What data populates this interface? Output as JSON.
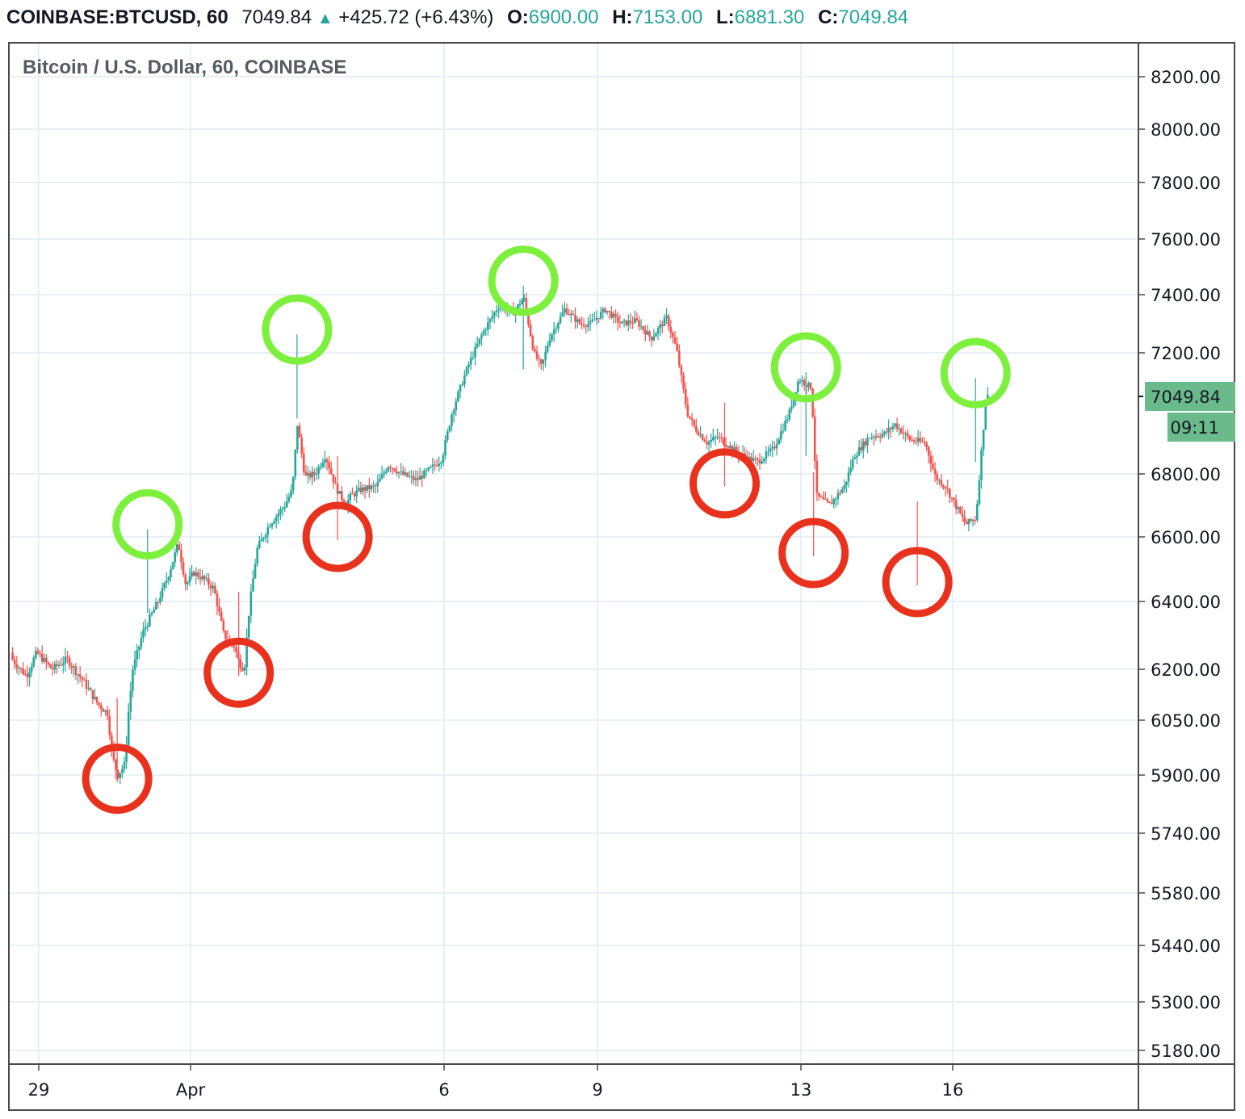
{
  "header": {
    "symbol": "COINBASE:BTCUSD, 60",
    "last": "7049.84",
    "change_arrow": "▲",
    "change": "+425.72 (+6.43%)",
    "o_label": "O:",
    "o_value": "6900.00",
    "h_label": "H:",
    "h_value": "7153.00",
    "l_label": "L:",
    "l_value": "6881.30",
    "c_label": "C:",
    "c_value": "7049.84"
  },
  "legend_title": "Bitcoin / U.S. Dollar, 60, COINBASE",
  "colors": {
    "up": "#26a69a",
    "down": "#ef5350",
    "grid": "#e1ecf2",
    "marker_high": "#7cf03c",
    "marker_low": "#e8321e",
    "price_badge": "#6aba8c"
  },
  "chart_data": {
    "type": "candlestick",
    "title": "Bitcoin / U.S. Dollar, 60, COINBASE",
    "timeframe": "60",
    "y_ticks": [
      8200,
      8000,
      7800,
      7600,
      7400,
      7200,
      6800,
      6600,
      6400,
      6200,
      6050,
      5900,
      5740,
      5580,
      5440,
      5300,
      5180
    ],
    "y_tick_labels": [
      "8200.00",
      "8000.00",
      "7800.00",
      "7600.00",
      "7400.00",
      "7200.00",
      "6800.00",
      "6600.00",
      "6400.00",
      "6200.00",
      "6050.00",
      "5900.00",
      "5740.00",
      "5580.00",
      "5440.00",
      "5300.00",
      "5180.00"
    ],
    "ylim": [
      5140,
      8280
    ],
    "x_ticks": [
      {
        "label": "29",
        "t": 0
      },
      {
        "label": "Apr",
        "t": 3
      },
      {
        "label": "6",
        "t": 8
      },
      {
        "label": "9",
        "t": 11
      },
      {
        "label": "13",
        "t": 15
      },
      {
        "label": "16",
        "t": 18
      }
    ],
    "xlim": [
      -0.6,
      21.7
    ],
    "last_price": "7049.84",
    "countdown": "09:11",
    "path": [
      [
        -0.6,
        6250
      ],
      [
        -0.2,
        6180
      ],
      [
        0.0,
        6250
      ],
      [
        0.3,
        6200
      ],
      [
        0.6,
        6230
      ],
      [
        0.9,
        6170
      ],
      [
        1.2,
        6100
      ],
      [
        1.4,
        6070
      ],
      [
        1.5,
        5950
      ],
      [
        1.6,
        5900
      ],
      [
        1.75,
        5930
      ],
      [
        1.8,
        6050
      ],
      [
        1.9,
        6200
      ],
      [
        2.1,
        6310
      ],
      [
        2.4,
        6400
      ],
      [
        2.6,
        6480
      ],
      [
        2.8,
        6580
      ],
      [
        2.95,
        6450
      ],
      [
        3.1,
        6490
      ],
      [
        3.3,
        6470
      ],
      [
        3.5,
        6440
      ],
      [
        3.7,
        6300
      ],
      [
        3.9,
        6270
      ],
      [
        4.0,
        6220
      ],
      [
        4.1,
        6200
      ],
      [
        4.2,
        6380
      ],
      [
        4.35,
        6560
      ],
      [
        4.6,
        6640
      ],
      [
        4.9,
        6700
      ],
      [
        5.05,
        6750
      ],
      [
        5.15,
        6960
      ],
      [
        5.3,
        6790
      ],
      [
        5.5,
        6800
      ],
      [
        5.7,
        6860
      ],
      [
        5.9,
        6760
      ],
      [
        6.1,
        6700
      ],
      [
        6.2,
        6730
      ],
      [
        6.4,
        6750
      ],
      [
        6.7,
        6760
      ],
      [
        6.95,
        6830
      ],
      [
        7.2,
        6800
      ],
      [
        7.5,
        6780
      ],
      [
        7.8,
        6820
      ],
      [
        8.0,
        6850
      ],
      [
        8.2,
        7000
      ],
      [
        8.5,
        7150
      ],
      [
        8.8,
        7270
      ],
      [
        9.1,
        7360
      ],
      [
        9.4,
        7340
      ],
      [
        9.6,
        7390
      ],
      [
        9.8,
        7200
      ],
      [
        9.95,
        7150
      ],
      [
        10.1,
        7250
      ],
      [
        10.4,
        7350
      ],
      [
        10.7,
        7300
      ],
      [
        10.9,
        7300
      ],
      [
        11.2,
        7350
      ],
      [
        11.5,
        7300
      ],
      [
        11.8,
        7310
      ],
      [
        12.1,
        7250
      ],
      [
        12.4,
        7320
      ],
      [
        12.6,
        7210
      ],
      [
        12.8,
        7000
      ],
      [
        12.95,
        6950
      ],
      [
        13.2,
        6900
      ],
      [
        13.4,
        6920
      ],
      [
        13.7,
        6880
      ],
      [
        14.0,
        6850
      ],
      [
        14.2,
        6840
      ],
      [
        14.5,
        6880
      ],
      [
        14.8,
        6990
      ],
      [
        15.0,
        7110
      ],
      [
        15.25,
        7080
      ],
      [
        15.35,
        6730
      ],
      [
        15.6,
        6700
      ],
      [
        15.9,
        6760
      ],
      [
        16.1,
        6860
      ],
      [
        16.4,
        6920
      ],
      [
        16.7,
        6930
      ],
      [
        16.9,
        6960
      ],
      [
        17.2,
        6910
      ],
      [
        17.5,
        6900
      ],
      [
        17.7,
        6790
      ],
      [
        17.9,
        6760
      ],
      [
        18.1,
        6700
      ],
      [
        18.3,
        6640
      ],
      [
        18.5,
        6660
      ],
      [
        18.7,
        7049.84
      ]
    ],
    "high_markers": [
      {
        "t": 2.15,
        "price": 6640
      },
      {
        "t": 5.1,
        "price": 7280
      },
      {
        "t": 9.55,
        "price": 7450
      },
      {
        "t": 15.1,
        "price": 7150
      },
      {
        "t": 18.45,
        "price": 7130
      }
    ],
    "low_markers": [
      {
        "t": 1.55,
        "price": 5890
      },
      {
        "t": 3.95,
        "price": 6190
      },
      {
        "t": 5.9,
        "price": 6600
      },
      {
        "t": 13.5,
        "price": 6770
      },
      {
        "t": 15.25,
        "price": 6550
      },
      {
        "t": 17.3,
        "price": 6460
      }
    ]
  }
}
